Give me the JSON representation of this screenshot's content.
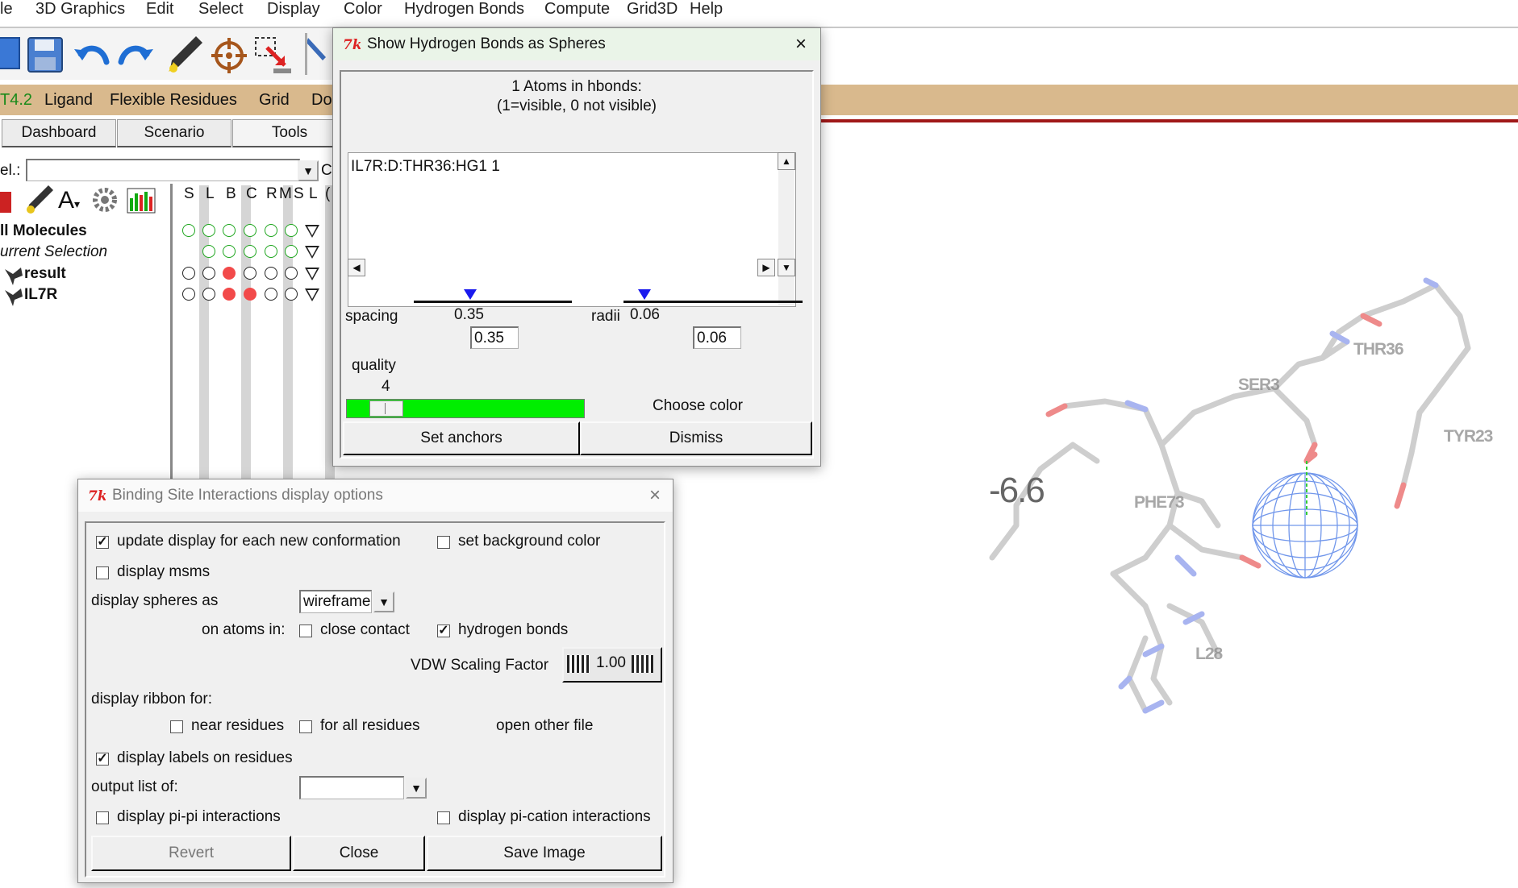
{
  "menubar": {
    "items": [
      "le",
      "3D Graphics",
      "Edit",
      "Select",
      "Display",
      "Color",
      "Hydrogen Bonds",
      "Compute",
      "Grid3D",
      "Help"
    ]
  },
  "toolbar": {
    "icons": [
      "open-file-icon",
      "save-icon",
      "undo-icon",
      "redo-icon",
      "pen-tool-icon",
      "target-icon",
      "select-arrow-icon",
      "tool-icon"
    ]
  },
  "ribbon": {
    "tabs": [
      "T4.2",
      "Ligand",
      "Flexible Residues",
      "Grid",
      "Do"
    ]
  },
  "dashboard": {
    "tabs": [
      "Dashboard",
      "Scenario",
      "Tools"
    ],
    "sel_label": "el.:",
    "c_label": "C",
    "column_headers": [
      "S",
      "L",
      "B",
      "C",
      "R",
      "M",
      "S",
      "L",
      "("
    ],
    "molecules": [
      {
        "label": "ll Molecules",
        "style": "bold"
      },
      {
        "label": "urrent Selection",
        "style": "italic"
      },
      {
        "label": "result",
        "style": "bold"
      },
      {
        "label": "IL7R",
        "style": "bold"
      }
    ]
  },
  "hbond_dialog": {
    "title": "Show Hydrogen Bonds as Spheres",
    "header_line1": "1 Atoms in hbonds:",
    "header_line2": "(1=visible, 0 not visible)",
    "list_items": [
      "IL7R:D:THR36:HG1 1"
    ],
    "spacing_label": "spacing",
    "spacing_value": "0.35",
    "spacing_entry": "0.35",
    "radii_label": "radii",
    "radii_value": "0.06",
    "radii_entry": "0.06",
    "quality_label": "quality",
    "quality_value": "4",
    "choose_color_label": "Choose color",
    "set_anchors_label": "Set anchors",
    "dismiss_label": "Dismiss",
    "colors": {
      "quality_bar": "#00ee00",
      "slider_marker": "#1a1aee"
    }
  },
  "bsi_dialog": {
    "title": "Binding Site Interactions display options",
    "update_display_label": "update display for each new conformation",
    "update_display_checked": true,
    "set_background_label": "set background color",
    "set_background_checked": false,
    "display_msms_label": "display msms",
    "display_msms_checked": false,
    "display_spheres_label": "display spheres as",
    "display_spheres_value": "wireframe",
    "on_atoms_label": "on atoms in:",
    "close_contact_label": "close contact",
    "close_contact_checked": false,
    "hydrogen_bonds_label": "hydrogen bonds",
    "hydrogen_bonds_checked": true,
    "vdw_label": "VDW Scaling Factor",
    "vdw_value": "1.00",
    "ribbon_label": "display ribbon for:",
    "near_residues_label": "near residues",
    "near_residues_checked": false,
    "all_residues_label": "for all residues",
    "all_residues_checked": false,
    "open_other_label": "open other file",
    "display_labels_label": "display labels on residues",
    "display_labels_checked": true,
    "output_list_label": "output list of:",
    "output_list_value": "",
    "pi_pi_label": "display pi-pi interactions",
    "pi_pi_checked": false,
    "pi_cation_label": "display pi-cation interactions",
    "pi_cation_checked": false,
    "revert_label": "Revert",
    "close_label": "Close",
    "save_image_label": "Save Image"
  },
  "viewer": {
    "score": "-6.6",
    "residue_labels": [
      "THR36",
      "SER3",
      "TYR23",
      "PHE73",
      "L28"
    ]
  }
}
